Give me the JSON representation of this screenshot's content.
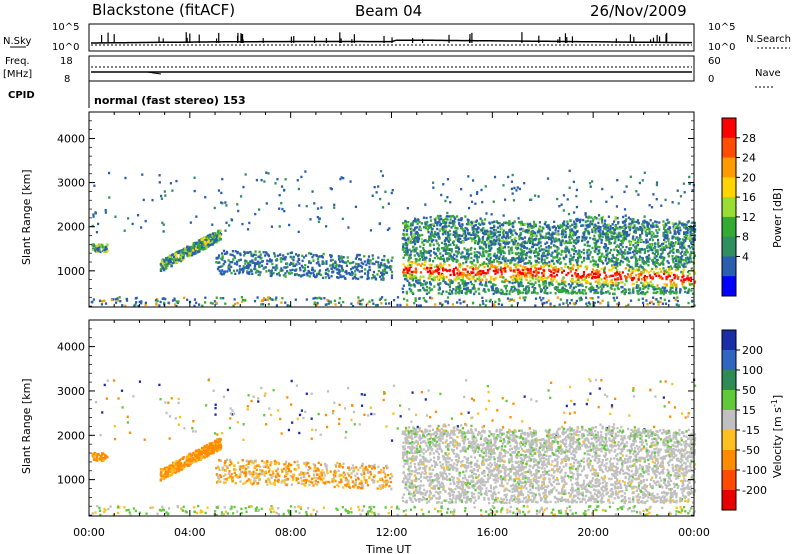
{
  "header": {
    "station": "Blackstone (fitACF)",
    "beam": "Beam 04",
    "date": "26/Nov/2009"
  },
  "info_panels": {
    "nsky_label": "N.Sky",
    "nsky_ticks": [
      "10^5",
      "10^0"
    ],
    "nsearch_label": "N.Search",
    "nsearch_ticks": [
      "10^5",
      "10^0"
    ],
    "freq_label_1": "Freq.",
    "freq_label_2": "[MHz]",
    "freq_ticks": [
      "18",
      "8"
    ],
    "nave_label": "Nave",
    "nave_ticks": [
      "60",
      "0"
    ],
    "cpid_label": "CPID",
    "cpid_text": "normal (fast stereo) 153"
  },
  "power_colorbar": {
    "label": "Power [dB]",
    "ticks": [
      "28",
      "24",
      "20",
      "16",
      "12",
      "8",
      "4"
    ],
    "colors": [
      "#ff0000",
      "#ff4d00",
      "#ff9a00",
      "#ffd400",
      "#99dd33",
      "#33aa33",
      "#2f8f5f",
      "#2a5fb0",
      "#0000ff"
    ]
  },
  "velocity_colorbar": {
    "label": "Velocity [m s^-1]",
    "label_main": "Velocity [m s",
    "label_sup": "-1",
    "label_end": "]",
    "ticks": [
      "200",
      "100",
      "50",
      "15",
      "-15",
      "-50",
      "-100",
      "-200"
    ],
    "colors": [
      "#1a2ea8",
      "#2f67c0",
      "#2e8b57",
      "#5fc93a",
      "#c0c0c0",
      "#ffc020",
      "#ff8c00",
      "#ff4a00",
      "#e80000"
    ]
  },
  "chart_data": [
    {
      "type": "heatmap",
      "panel": "power",
      "ylabel": "Slant Range [km]",
      "xlabel": "",
      "ylim": [
        180,
        4600
      ],
      "yticks": [
        "4000",
        "3000",
        "2000",
        "1000"
      ],
      "x_ticks": [
        "00:00",
        "04:00",
        "08:00",
        "12:00",
        "16:00",
        "20:00",
        "00:00"
      ],
      "xlim_hours": [
        0,
        24
      ],
      "features": [
        {
          "name": "early echo band",
          "t_start": 3.2,
          "t_end": 5.0,
          "range_center": 1350,
          "power_dB": 12
        },
        {
          "name": "main band core",
          "t_start": 12.4,
          "t_end": 22.0,
          "range_center": 1050,
          "power_dB": 28
        },
        {
          "name": "upper band",
          "t_start": 12.4,
          "t_end": 22.0,
          "range_center": 1800,
          "power_dB": 8
        }
      ]
    },
    {
      "type": "heatmap",
      "panel": "velocity",
      "ylabel": "Slant Range [km]",
      "xlabel": "Time UT",
      "ylim": [
        180,
        4600
      ],
      "yticks": [
        "4000",
        "3000",
        "2000",
        "1000"
      ],
      "x_ticks": [
        "00:00",
        "04:00",
        "08:00",
        "12:00",
        "16:00",
        "20:00",
        "00:00"
      ],
      "xlim_hours": [
        0,
        24
      ],
      "features": [
        {
          "name": "early band (orange)",
          "t_start": 2.8,
          "t_end": 5.5,
          "range_center": 1300,
          "velocity": -50
        },
        {
          "name": "main region (grey)",
          "t_start": 12.5,
          "t_end": 24.0,
          "range_center": 1400,
          "velocity": 0
        }
      ]
    }
  ]
}
